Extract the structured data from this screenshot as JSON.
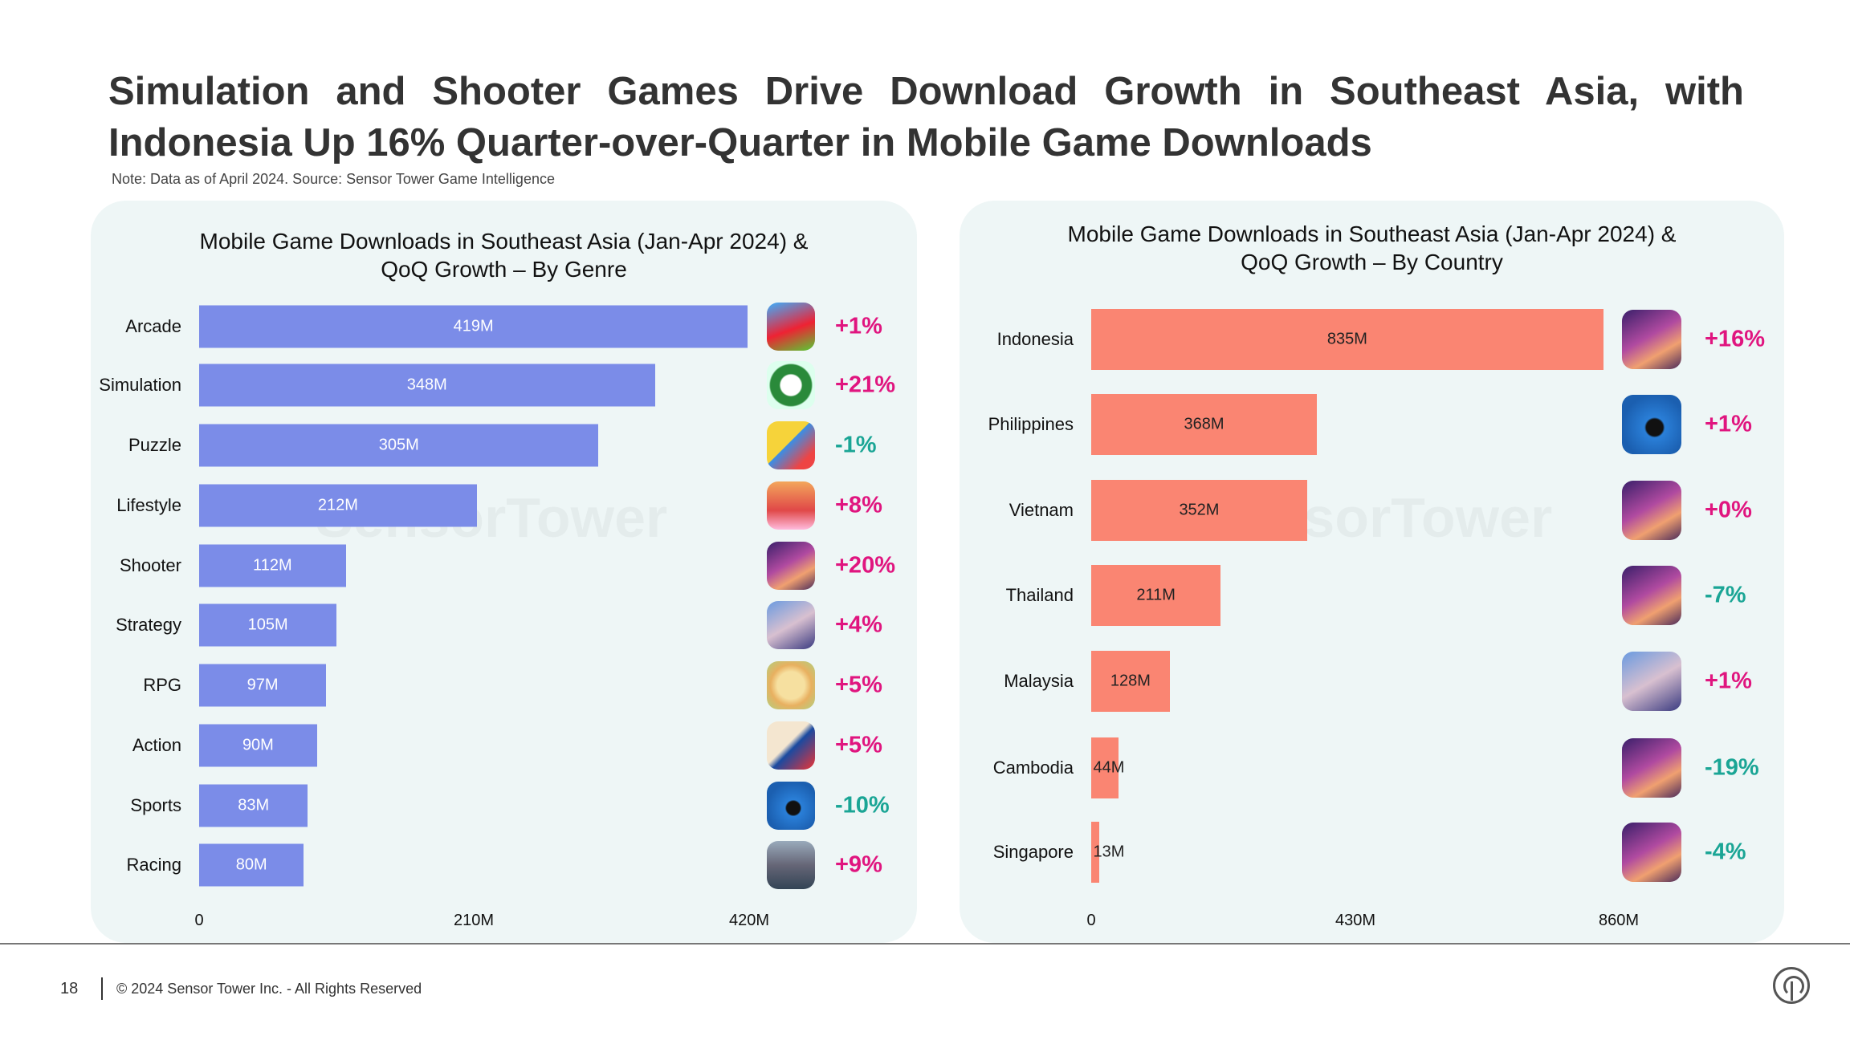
{
  "header": {
    "title_line1": "Simulation and Shooter Games Drive Download Growth in Southeast Asia, with",
    "title_line2": "Indonesia Up 16% Quarter-over-Quarter in Mobile Game Downloads",
    "note": "Note: Data as of April 2024. Source: Sensor Tower Game Intelligence"
  },
  "watermark": "SensorTower",
  "footer": {
    "page_number": "18",
    "copyright": "© 2024 Sensor Tower Inc. - All Rights Reserved"
  },
  "colors": {
    "genre_bar": "#7b8ce8",
    "country_bar": "#fa8572",
    "positive": "#e0157f",
    "negative": "#1aa595",
    "panel": "#eef6f6"
  },
  "chart_data": [
    {
      "type": "bar",
      "orientation": "horizontal",
      "title_line1": "Mobile Game Downloads in Southeast Asia (Jan-Apr 2024) &",
      "title_line2": "QoQ Growth – By Genre",
      "categories": [
        "Arcade",
        "Simulation",
        "Puzzle",
        "Lifestyle",
        "Shooter",
        "Strategy",
        "RPG",
        "Action",
        "Sports",
        "Racing"
      ],
      "values": [
        419,
        348,
        305,
        212,
        112,
        105,
        97,
        90,
        83,
        80
      ],
      "value_labels": [
        "419M",
        "348M",
        "305M",
        "212M",
        "112M",
        "105M",
        "97M",
        "90M",
        "83M",
        "80M"
      ],
      "growth": [
        "+1%",
        "+21%",
        "-1%",
        "+8%",
        "+20%",
        "+4%",
        "+5%",
        "+5%",
        "-10%",
        "+9%"
      ],
      "icons": [
        "arcade-game-icon",
        "ojol-game-icon",
        "puzzle-game-icon",
        "lifestyle-game-icon",
        "free-fire-icon",
        "kof-allstar-icon",
        "rpg-game-icon",
        "one-punch-man-icon",
        "8-ball-pool-icon",
        "racing-game-icon"
      ],
      "xlim": [
        0,
        420
      ],
      "xticks": [
        "0",
        "210M",
        "420M"
      ],
      "grid": false
    },
    {
      "type": "bar",
      "orientation": "horizontal",
      "title_line1": "Mobile Game Downloads in Southeast Asia (Jan-Apr 2024) &",
      "title_line2": "QoQ Growth – By Country",
      "categories": [
        "Indonesia",
        "Philippines",
        "Vietnam",
        "Thailand",
        "Malaysia",
        "Cambodia",
        "Singapore"
      ],
      "values": [
        835,
        368,
        352,
        211,
        128,
        44,
        13
      ],
      "value_labels": [
        "835M",
        "368M",
        "352M",
        "211M",
        "128M",
        "44M",
        "13M"
      ],
      "growth": [
        "+16%",
        "+1%",
        "+0%",
        "-7%",
        "+1%",
        "-19%",
        "-4%"
      ],
      "icons": [
        "free-fire-icon",
        "8-ball-pool-icon",
        "free-fire-icon",
        "free-fire-icon",
        "kof-allstar-icon",
        "free-fire-icon",
        "free-fire-icon"
      ],
      "xlim": [
        0,
        860
      ],
      "xticks": [
        "0",
        "430M",
        "860M"
      ],
      "grid": false
    }
  ]
}
